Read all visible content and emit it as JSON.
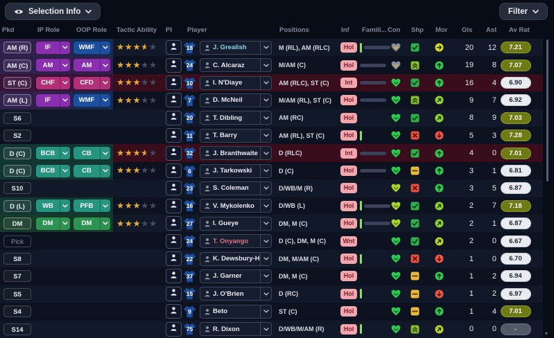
{
  "toolbar": {
    "selection_info_label": "Selection Info",
    "filter_label": "Filter"
  },
  "columns": {
    "pkd": "Pkd",
    "ip_role": "IP Role",
    "oop_role": "OOP Role",
    "tactic_ability": "Tactic Ability",
    "pi": "PI",
    "player": "Player",
    "positions": "Positions",
    "inf": "Inf",
    "famil": "Famili...",
    "con": "Con",
    "shp": "Shp",
    "mor": "Mor",
    "gls": "Gls",
    "ast": "Ast",
    "av_rat": "Av Rat"
  },
  "colors": {
    "role_buttons": {
      "purple": "#8A2FB0",
      "blue": "#1C509E",
      "magenta": "#B23078",
      "teal": "#27947F",
      "green": "#2E9253"
    },
    "bands": {
      "purple": "#30204C",
      "blue": "#152B52",
      "magenta": "#3A1438",
      "teal": "#123631",
      "green": "#163A28"
    },
    "row_light": "#111827",
    "row_dark": "#0C1220",
    "row_red": "#3A0D1C",
    "famil_fills": {
      "green": "#3BD12C",
      "bright": "#5CF020",
      "yellow": "#E8F000"
    },
    "hearts": {
      "low": {
        "fill": "#8A8F9C",
        "chev": "#E8B93E"
      },
      "good": {
        "fill": "#2FC94E",
        "chev": "#0A6E2A"
      },
      "ok": {
        "fill": "#A8D32A",
        "chev": "#5E7E0E"
      }
    },
    "sharpness": {
      "check": "#2FAE4E",
      "up": "#86BF2A",
      "avg": "#E8B93E",
      "poor": "#E8513F"
    },
    "morale": {
      "green": "#2FC94E",
      "lgreen": "#8FD430",
      "ygreen": "#B8D22A",
      "yellow": "#D9D926",
      "red": "#F05545"
    },
    "inf_badge_bg": "#F2A6AD",
    "inf_badge_text": "#7C1F2D",
    "shirt": "#1E4FA3",
    "star_full": "#E8A832",
    "star_empty": "#454E60",
    "name_default": "#E8EBF2",
    "name_loan": "#86D7E8",
    "name_unavailable": "#E0737F"
  },
  "rows": [
    {
      "pkd": "AM (R)",
      "pkd_style": "role",
      "band_main": "purple",
      "band_oop": "blue",
      "ip": {
        "label": "IF",
        "color": "purple"
      },
      "oop": {
        "label": "WMF",
        "color": "blue"
      },
      "stars": 3.5,
      "num": "18",
      "name": "J. Grealish",
      "name_color": "name_loan",
      "positions": "M (RL), AM (RLC)",
      "inf": "Hol",
      "pip": true,
      "famil": {
        "pct": 65,
        "color": "green"
      },
      "con": "low",
      "shp": "check",
      "mor": {
        "color": "yellow",
        "dir": "right"
      },
      "gls": "20",
      "ast": "12",
      "rating": "7.21",
      "rating_style": "olive",
      "red": false
    },
    {
      "pkd": "AM (C)",
      "pkd_style": "role",
      "band_main": "purple",
      "band_oop": "purple",
      "ip": {
        "label": "AM",
        "color": "purple"
      },
      "oop": {
        "label": "AM",
        "color": "purple"
      },
      "stars": 3,
      "num": "24",
      "name": "C. Alcaraz",
      "name_color": "name_default",
      "positions": "M/AM (C)",
      "inf": "Hol",
      "pip": false,
      "famil": {
        "pct": 100,
        "color": "green"
      },
      "con": "low",
      "shp": "up",
      "mor": {
        "color": "green",
        "dir": "up"
      },
      "gls": "19",
      "ast": "8",
      "rating": "7.07",
      "rating_style": "olive",
      "red": false
    },
    {
      "pkd": "ST (C)",
      "pkd_style": "role",
      "band_main": "magenta",
      "band_oop": "magenta",
      "ip": {
        "label": "CHF",
        "color": "magenta"
      },
      "oop": {
        "label": "CFD",
        "color": "magenta"
      },
      "stars": 3,
      "num": "10",
      "name": "I. N'Diaye",
      "name_color": "name_default",
      "positions": "AM (RLC), ST (C)",
      "inf": "Int",
      "pip": false,
      "famil": {
        "pct": 80,
        "color": "green"
      },
      "con": "good",
      "shp": "check",
      "mor": {
        "color": "green",
        "dir": "up"
      },
      "gls": "16",
      "ast": "4",
      "rating": "6.90",
      "rating_style": "white",
      "red": true
    },
    {
      "pkd": "AM (L)",
      "pkd_style": "role",
      "band_main": "purple",
      "band_oop": "blue",
      "ip": {
        "label": "IF",
        "color": "purple"
      },
      "oop": {
        "label": "WMF",
        "color": "blue"
      },
      "stars": 3,
      "num": "7",
      "name": "D. McNeil",
      "name_color": "name_default",
      "positions": "M/AM (RL), ST (C)",
      "inf": "Hol",
      "pip": false,
      "famil": {
        "pct": 100,
        "color": "green"
      },
      "con": "good",
      "shp": "up",
      "mor": {
        "color": "lgreen",
        "dir": "upright"
      },
      "gls": "9",
      "ast": "7",
      "rating": "6.92",
      "rating_style": "white",
      "red": false
    },
    {
      "pkd": "S6",
      "pkd_style": "sub",
      "band_main": null,
      "band_oop": null,
      "ip": null,
      "oop": null,
      "stars": 0,
      "num": "20",
      "name": "T. Dibling",
      "name_color": "name_default",
      "positions": "AM (RC)",
      "inf": "Hol",
      "pip": false,
      "famil": null,
      "con": "good",
      "shp": "check",
      "mor": {
        "color": "lgreen",
        "dir": "upright"
      },
      "gls": "8",
      "ast": "9",
      "rating": "7.03",
      "rating_style": "olive",
      "red": false
    },
    {
      "pkd": "S2",
      "pkd_style": "sub",
      "band_main": null,
      "band_oop": null,
      "ip": null,
      "oop": null,
      "stars": 0,
      "num": "11",
      "name": "T. Barry",
      "name_color": "name_default",
      "positions": "AM (RL), ST (C)",
      "inf": "Hol",
      "pip": true,
      "famil": null,
      "con": "good",
      "shp": "poor",
      "mor": {
        "color": "red",
        "dir": "down"
      },
      "gls": "5",
      "ast": "3",
      "rating": "7.28",
      "rating_style": "olive",
      "red": false
    },
    {
      "pkd": "D (C)",
      "pkd_style": "role",
      "band_main": "teal",
      "band_oop": "teal",
      "ip": {
        "label": "BCB",
        "color": "teal"
      },
      "oop": {
        "label": "CB",
        "color": "teal"
      },
      "stars": 3.5,
      "num": "32",
      "name": "J. Branthwaite",
      "name_color": "name_default",
      "positions": "D (RLC)",
      "inf": "Int",
      "pip": false,
      "famil": {
        "pct": 70,
        "color": "yellow"
      },
      "con": "good",
      "shp": "check",
      "mor": {
        "color": "green",
        "dir": "up"
      },
      "gls": "4",
      "ast": "0",
      "rating": "7.01",
      "rating_style": "olive",
      "red": true
    },
    {
      "pkd": "D (C)",
      "pkd_style": "role",
      "band_main": "teal",
      "band_oop": "teal",
      "ip": {
        "label": "BCB",
        "color": "teal"
      },
      "oop": {
        "label": "CB",
        "color": "teal"
      },
      "stars": 3,
      "num": "6",
      "name": "J. Tarkowski",
      "name_color": "name_default",
      "positions": "D (C)",
      "inf": "Hol",
      "pip": false,
      "famil": {
        "pct": 100,
        "color": "bright"
      },
      "con": "good",
      "shp": "avg",
      "mor": {
        "color": "green",
        "dir": "up"
      },
      "gls": "3",
      "ast": "1",
      "rating": "6.81",
      "rating_style": "white",
      "red": false
    },
    {
      "pkd": "S10",
      "pkd_style": "sub",
      "band_main": null,
      "band_oop": null,
      "ip": null,
      "oop": null,
      "stars": 0,
      "num": "23",
      "name": "S. Coleman",
      "name_color": "name_default",
      "positions": "D/WB/M (R)",
      "inf": "Hol",
      "pip": false,
      "famil": null,
      "con": "ok",
      "shp": "poor",
      "mor": {
        "color": "green",
        "dir": "up"
      },
      "gls": "3",
      "ast": "5",
      "rating": "6.87",
      "rating_style": "white",
      "red": false
    },
    {
      "pkd": "D (L)",
      "pkd_style": "role",
      "band_main": "teal",
      "band_oop": "teal",
      "ip": {
        "label": "WB",
        "color": "teal"
      },
      "oop": {
        "label": "PFB",
        "color": "teal"
      },
      "stars": 3,
      "num": "16",
      "name": "V. Mykolenko",
      "name_color": "name_default",
      "positions": "D/WB (L)",
      "inf": "Hol",
      "pip": true,
      "famil": {
        "pct": 100,
        "color": "green"
      },
      "con": "ok",
      "shp": "check",
      "mor": {
        "color": "lgreen",
        "dir": "upright"
      },
      "gls": "2",
      "ast": "7",
      "rating": "7.18",
      "rating_style": "olive",
      "red": false
    },
    {
      "pkd": "DM",
      "pkd_style": "role",
      "band_main": "green",
      "band_oop": "green",
      "ip": {
        "label": "DM",
        "color": "green"
      },
      "oop": {
        "label": "DM",
        "color": "green"
      },
      "stars": 3,
      "num": "27",
      "name": "I. Gueye",
      "name_color": "name_default",
      "positions": "DM, M (C)",
      "inf": "Hol",
      "pip": true,
      "famil": {
        "pct": 100,
        "color": "green"
      },
      "con": "ok",
      "shp": "check",
      "mor": {
        "color": "lgreen",
        "dir": "upright"
      },
      "gls": "2",
      "ast": "1",
      "rating": "6.87",
      "rating_style": "white",
      "red": false
    },
    {
      "pkd": "Pick",
      "pkd_style": "pick",
      "band_main": null,
      "band_oop": null,
      "ip": null,
      "oop": null,
      "stars": 0,
      "num": "24",
      "name": "T. Onyango",
      "name_color": "name_unavailable",
      "positions": "D (C), DM, M (C)",
      "inf": "Wnt",
      "pip": false,
      "famil": null,
      "con": "good",
      "shp": "check",
      "mor": {
        "color": "ygreen",
        "dir": "upright"
      },
      "gls": "2",
      "ast": "0",
      "rating": "6.67",
      "rating_style": "white",
      "red": false
    },
    {
      "pkd": "S8",
      "pkd_style": "sub",
      "band_main": null,
      "band_oop": null,
      "ip": null,
      "oop": null,
      "stars": 0,
      "num": "22",
      "name": "K. Dewsbury-Hall",
      "name_color": "name_default",
      "positions": "DM, M/AM (C)",
      "inf": "Hol",
      "pip": true,
      "famil": null,
      "con": "good",
      "shp": "poor",
      "mor": {
        "color": "red",
        "dir": "down"
      },
      "gls": "1",
      "ast": "0",
      "rating": "6.70",
      "rating_style": "white",
      "red": false
    },
    {
      "pkd": "S7",
      "pkd_style": "sub",
      "band_main": null,
      "band_oop": null,
      "ip": null,
      "oop": null,
      "stars": 0,
      "num": "37",
      "name": "J. Garner",
      "name_color": "name_default",
      "positions": "DM, M (C)",
      "inf": "Hol",
      "pip": false,
      "famil": null,
      "con": "good",
      "shp": "avg",
      "mor": {
        "color": "green",
        "dir": "up"
      },
      "gls": "1",
      "ast": "2",
      "rating": "6.94",
      "rating_style": "white",
      "red": false
    },
    {
      "pkd": "S5",
      "pkd_style": "sub",
      "band_main": null,
      "band_oop": null,
      "ip": null,
      "oop": null,
      "stars": 0,
      "num": "15",
      "name": "J. O'Brien",
      "name_color": "name_default",
      "positions": "D (RC)",
      "inf": "Hol",
      "pip": true,
      "famil": null,
      "con": "good",
      "shp": "avg",
      "mor": {
        "color": "red",
        "dir": "down"
      },
      "gls": "1",
      "ast": "2",
      "rating": "6.97",
      "rating_style": "white",
      "red": false
    },
    {
      "pkd": "S4",
      "pkd_style": "sub",
      "band_main": null,
      "band_oop": null,
      "ip": null,
      "oop": null,
      "stars": 0,
      "num": "9",
      "name": "Beto",
      "name_color": "name_default",
      "positions": "ST (C)",
      "inf": "Hol",
      "pip": false,
      "famil": null,
      "con": "good",
      "shp": "avg",
      "mor": {
        "color": "green",
        "dir": "up"
      },
      "gls": "1",
      "ast": "4",
      "rating": "7.01",
      "rating_style": "olive",
      "red": false
    },
    {
      "pkd": "S14",
      "pkd_style": "sub",
      "band_main": null,
      "band_oop": null,
      "ip": null,
      "oop": null,
      "stars": 0,
      "num": "75",
      "name": "R. Dixon",
      "name_color": "name_default",
      "positions": "D/WB/M/AM (R)",
      "inf": "Hol",
      "pip": true,
      "famil": null,
      "con": "good",
      "shp": "up",
      "mor": {
        "color": "ygreen",
        "dir": "upright"
      },
      "gls": "0",
      "ast": "0",
      "rating": "-",
      "rating_style": "gray",
      "red": false
    }
  ]
}
